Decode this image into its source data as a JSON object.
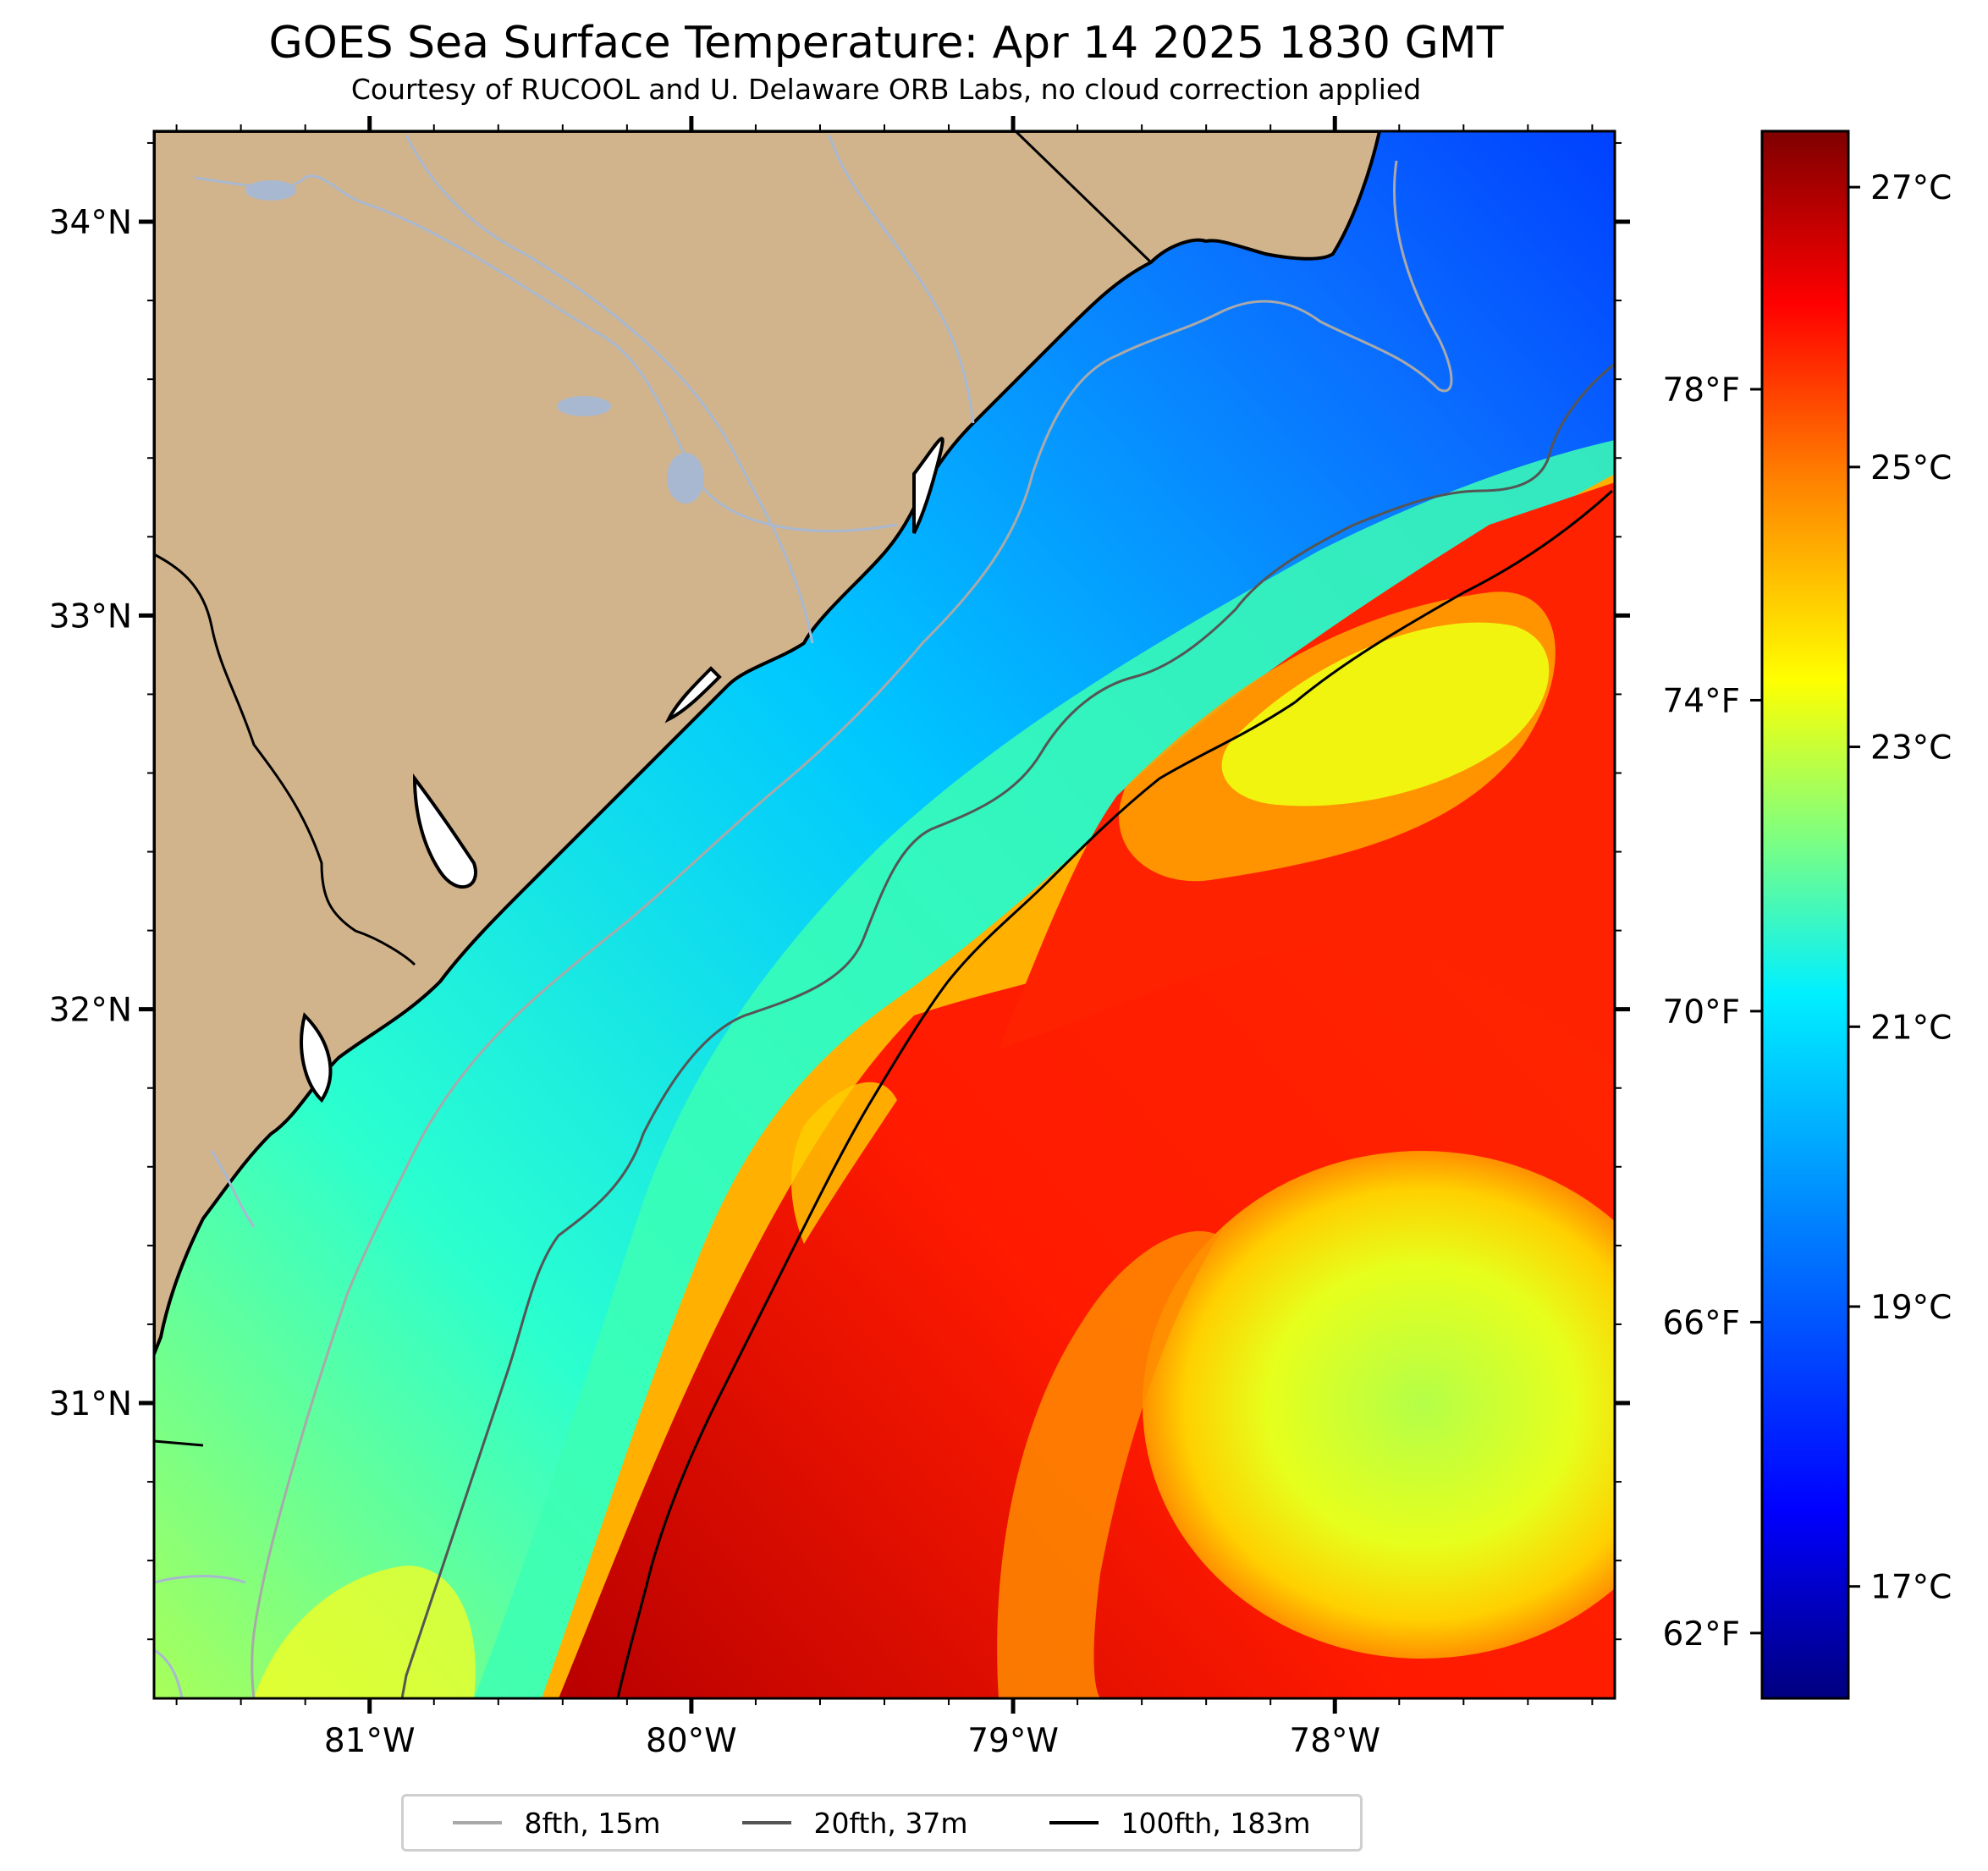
{
  "title": "GOES Sea Surface Temperature: Apr 14 2025 1830 GMT",
  "subtitle": "Courtesy of RUCOOL and U. Delaware ORB Labs, no cloud correction applied",
  "map": {
    "lon_ticks": [
      {
        "value": -81,
        "label": "81°W"
      },
      {
        "value": -80,
        "label": "80°W"
      },
      {
        "value": -79,
        "label": "79°W"
      },
      {
        "value": -78,
        "label": "78°W"
      }
    ],
    "lat_ticks": [
      {
        "value": 34,
        "label": "34°N"
      },
      {
        "value": 33,
        "label": "33°N"
      },
      {
        "value": 32,
        "label": "32°N"
      },
      {
        "value": 31,
        "label": "31°N"
      }
    ],
    "lon_range": [
      -81.67,
      -77.13
    ],
    "lat_range": [
      30.25,
      34.23
    ],
    "land_color": "#d2b48c",
    "regions": [
      "South Carolina coast",
      "Georgia coast",
      "Gulf Stream"
    ]
  },
  "colorbar": {
    "vmin_c": 16.2,
    "vmax_c": 27.4,
    "celsius_ticks": [
      {
        "value": 17,
        "label": "17°C"
      },
      {
        "value": 19,
        "label": "19°C"
      },
      {
        "value": 21,
        "label": "21°C"
      },
      {
        "value": 23,
        "label": "23°C"
      },
      {
        "value": 25,
        "label": "25°C"
      },
      {
        "value": 27,
        "label": "27°C"
      }
    ],
    "fahrenheit_ticks": [
      {
        "value": 62,
        "label": "62°F"
      },
      {
        "value": 66,
        "label": "66°F"
      },
      {
        "value": 70,
        "label": "70°F"
      },
      {
        "value": 74,
        "label": "74°F"
      },
      {
        "value": 78,
        "label": "78°F"
      }
    ],
    "colormap": "jet",
    "colors": [
      "#00007f",
      "#0000ff",
      "#007fff",
      "#00ffff",
      "#7fff7f",
      "#ffff00",
      "#ff7f00",
      "#ff0000",
      "#7f0000"
    ]
  },
  "legend": {
    "items": [
      {
        "label": "8fth, 15m",
        "color": "#a9a9a9"
      },
      {
        "label": "20fth, 37m",
        "color": "#555555"
      },
      {
        "label": "100fth, 183m",
        "color": "#000000"
      }
    ]
  }
}
